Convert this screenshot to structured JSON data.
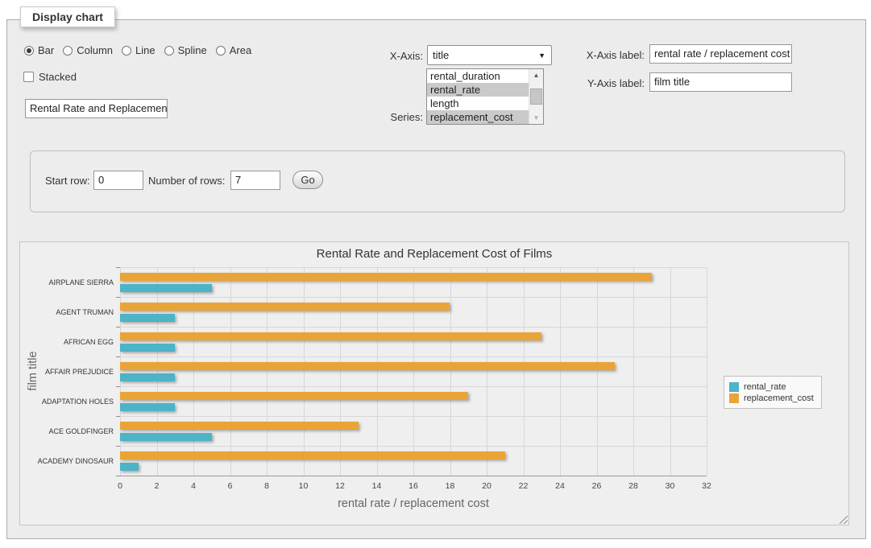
{
  "panel": {
    "legend": "Display chart"
  },
  "chart_type": {
    "options": [
      {
        "label": "Bar",
        "selected": true
      },
      {
        "label": "Column",
        "selected": false
      },
      {
        "label": "Line",
        "selected": false
      },
      {
        "label": "Spline",
        "selected": false
      },
      {
        "label": "Area",
        "selected": false
      }
    ]
  },
  "stacked": {
    "label": "Stacked",
    "checked": false
  },
  "title_input": {
    "value": "Rental Rate and Replacement Cost of Films"
  },
  "x_axis": {
    "label": "X-Axis:",
    "selected": "title",
    "caret": "▼"
  },
  "series_select": {
    "label": "Series:",
    "options": [
      {
        "label": "rental_duration",
        "selected": false
      },
      {
        "label": "rental_rate",
        "selected": true
      },
      {
        "label": "length",
        "selected": false
      },
      {
        "label": "replacement_cost",
        "selected": true
      }
    ],
    "scroll_up": "▲",
    "scroll_down": "▼"
  },
  "x_axis_label": {
    "label": "X-Axis label:",
    "value": "rental rate / replacement cost"
  },
  "y_axis_label": {
    "label": "Y-Axis label:",
    "value": "film title"
  },
  "rows_panel": {
    "start_row_label": "Start row:",
    "start_row_value": "0",
    "num_rows_label": "Number of rows:",
    "num_rows_value": "7",
    "go_label": "Go"
  },
  "chart_data": {
    "type": "bar",
    "title": "Rental Rate and Replacement Cost of Films",
    "xlabel": "rental rate / replacement cost",
    "ylabel": "film title",
    "categories": [
      "AIRPLANE SIERRA",
      "AGENT TRUMAN",
      "AFRICAN EGG",
      "AFFAIR PREJUDICE",
      "ADAPTATION HOLES",
      "ACE GOLDFINGER",
      "ACADEMY DINOSAUR"
    ],
    "series": [
      {
        "name": "rental_rate",
        "color": "#4DB3C6",
        "values": [
          4.99,
          2.99,
          2.99,
          2.99,
          2.99,
          4.99,
          0.99
        ]
      },
      {
        "name": "replacement_cost",
        "color": "#E9A437",
        "values": [
          28.99,
          17.99,
          22.99,
          26.99,
          18.99,
          12.99,
          20.99
        ]
      }
    ],
    "bar_order_top_to_bottom": [
      "replacement_cost",
      "rental_rate"
    ],
    "xlim": [
      0,
      32
    ],
    "x_ticks": [
      0,
      2,
      4,
      6,
      8,
      10,
      12,
      14,
      16,
      18,
      20,
      22,
      24,
      26,
      28,
      30,
      32
    ],
    "grid": true,
    "legend_position": "right"
  }
}
